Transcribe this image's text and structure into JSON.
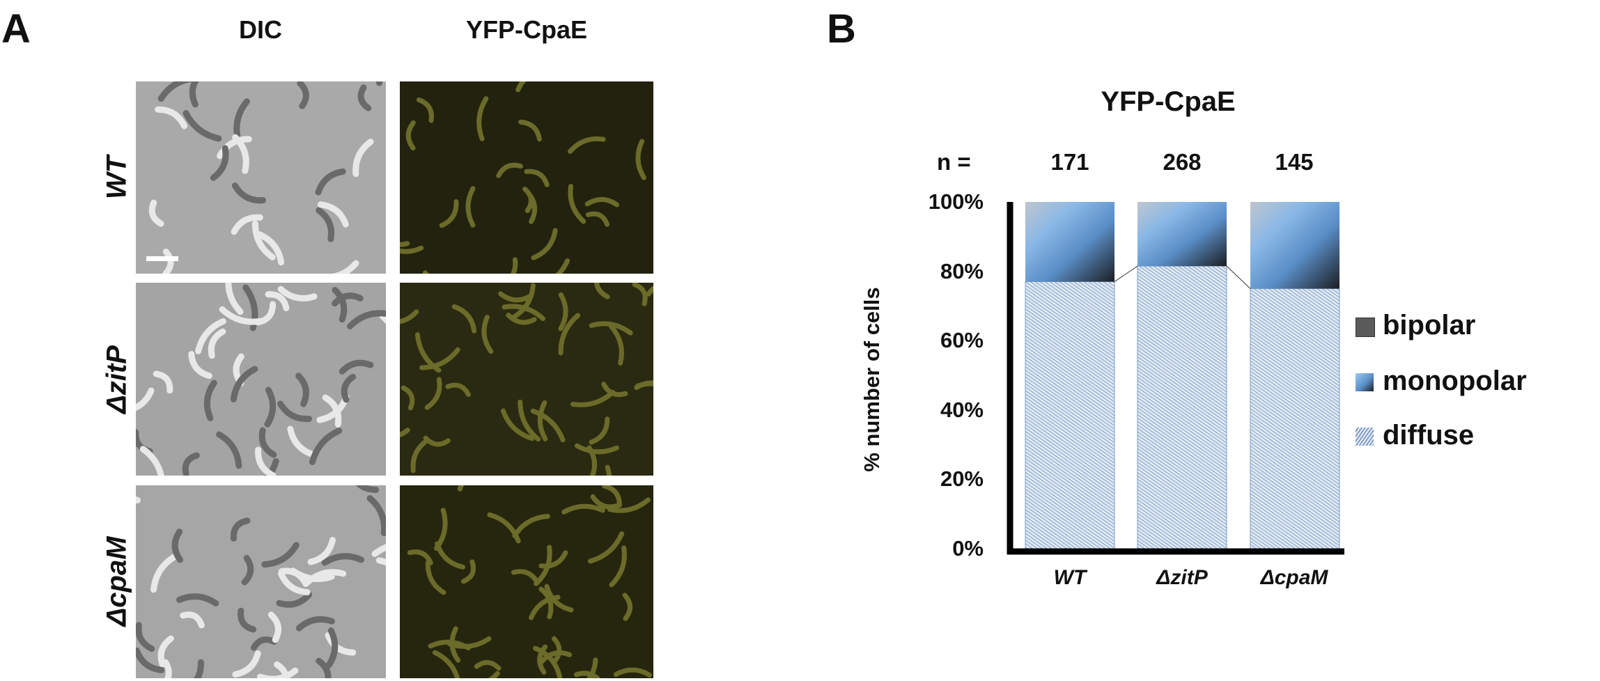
{
  "panel_a": {
    "letter": "A",
    "columns": [
      "DIC",
      "YFP-CpaE"
    ],
    "rows": [
      "WT",
      "ΔzitP",
      "ΔcpaM"
    ]
  },
  "panel_b": {
    "letter": "B",
    "n_label": "n =",
    "n_values": [
      "171",
      "268",
      "145"
    ]
  },
  "chart_data": {
    "type": "bar",
    "stacked": true,
    "title": "YFP-CpaE",
    "categories": [
      "WT",
      "ΔzitP",
      "ΔcpaM"
    ],
    "series": [
      {
        "name": "diffuse",
        "values": [
          77,
          81.5,
          75
        ],
        "color": "#9fb8d8"
      },
      {
        "name": "monopolar",
        "values": [
          23,
          18.5,
          25
        ],
        "color": "#6fa3dc"
      },
      {
        "name": "bipolar",
        "values": [
          0,
          0,
          0
        ],
        "color": "#5a5a5a"
      }
    ],
    "legend_order": [
      "bipolar",
      "monopolar",
      "diffuse"
    ],
    "ylabel": "% number of cells",
    "xlabel": "",
    "yticks": [
      "0%",
      "20%",
      "40%",
      "60%",
      "80%",
      "100%"
    ],
    "ylim": [
      0,
      100
    ],
    "legend_position": "right"
  }
}
